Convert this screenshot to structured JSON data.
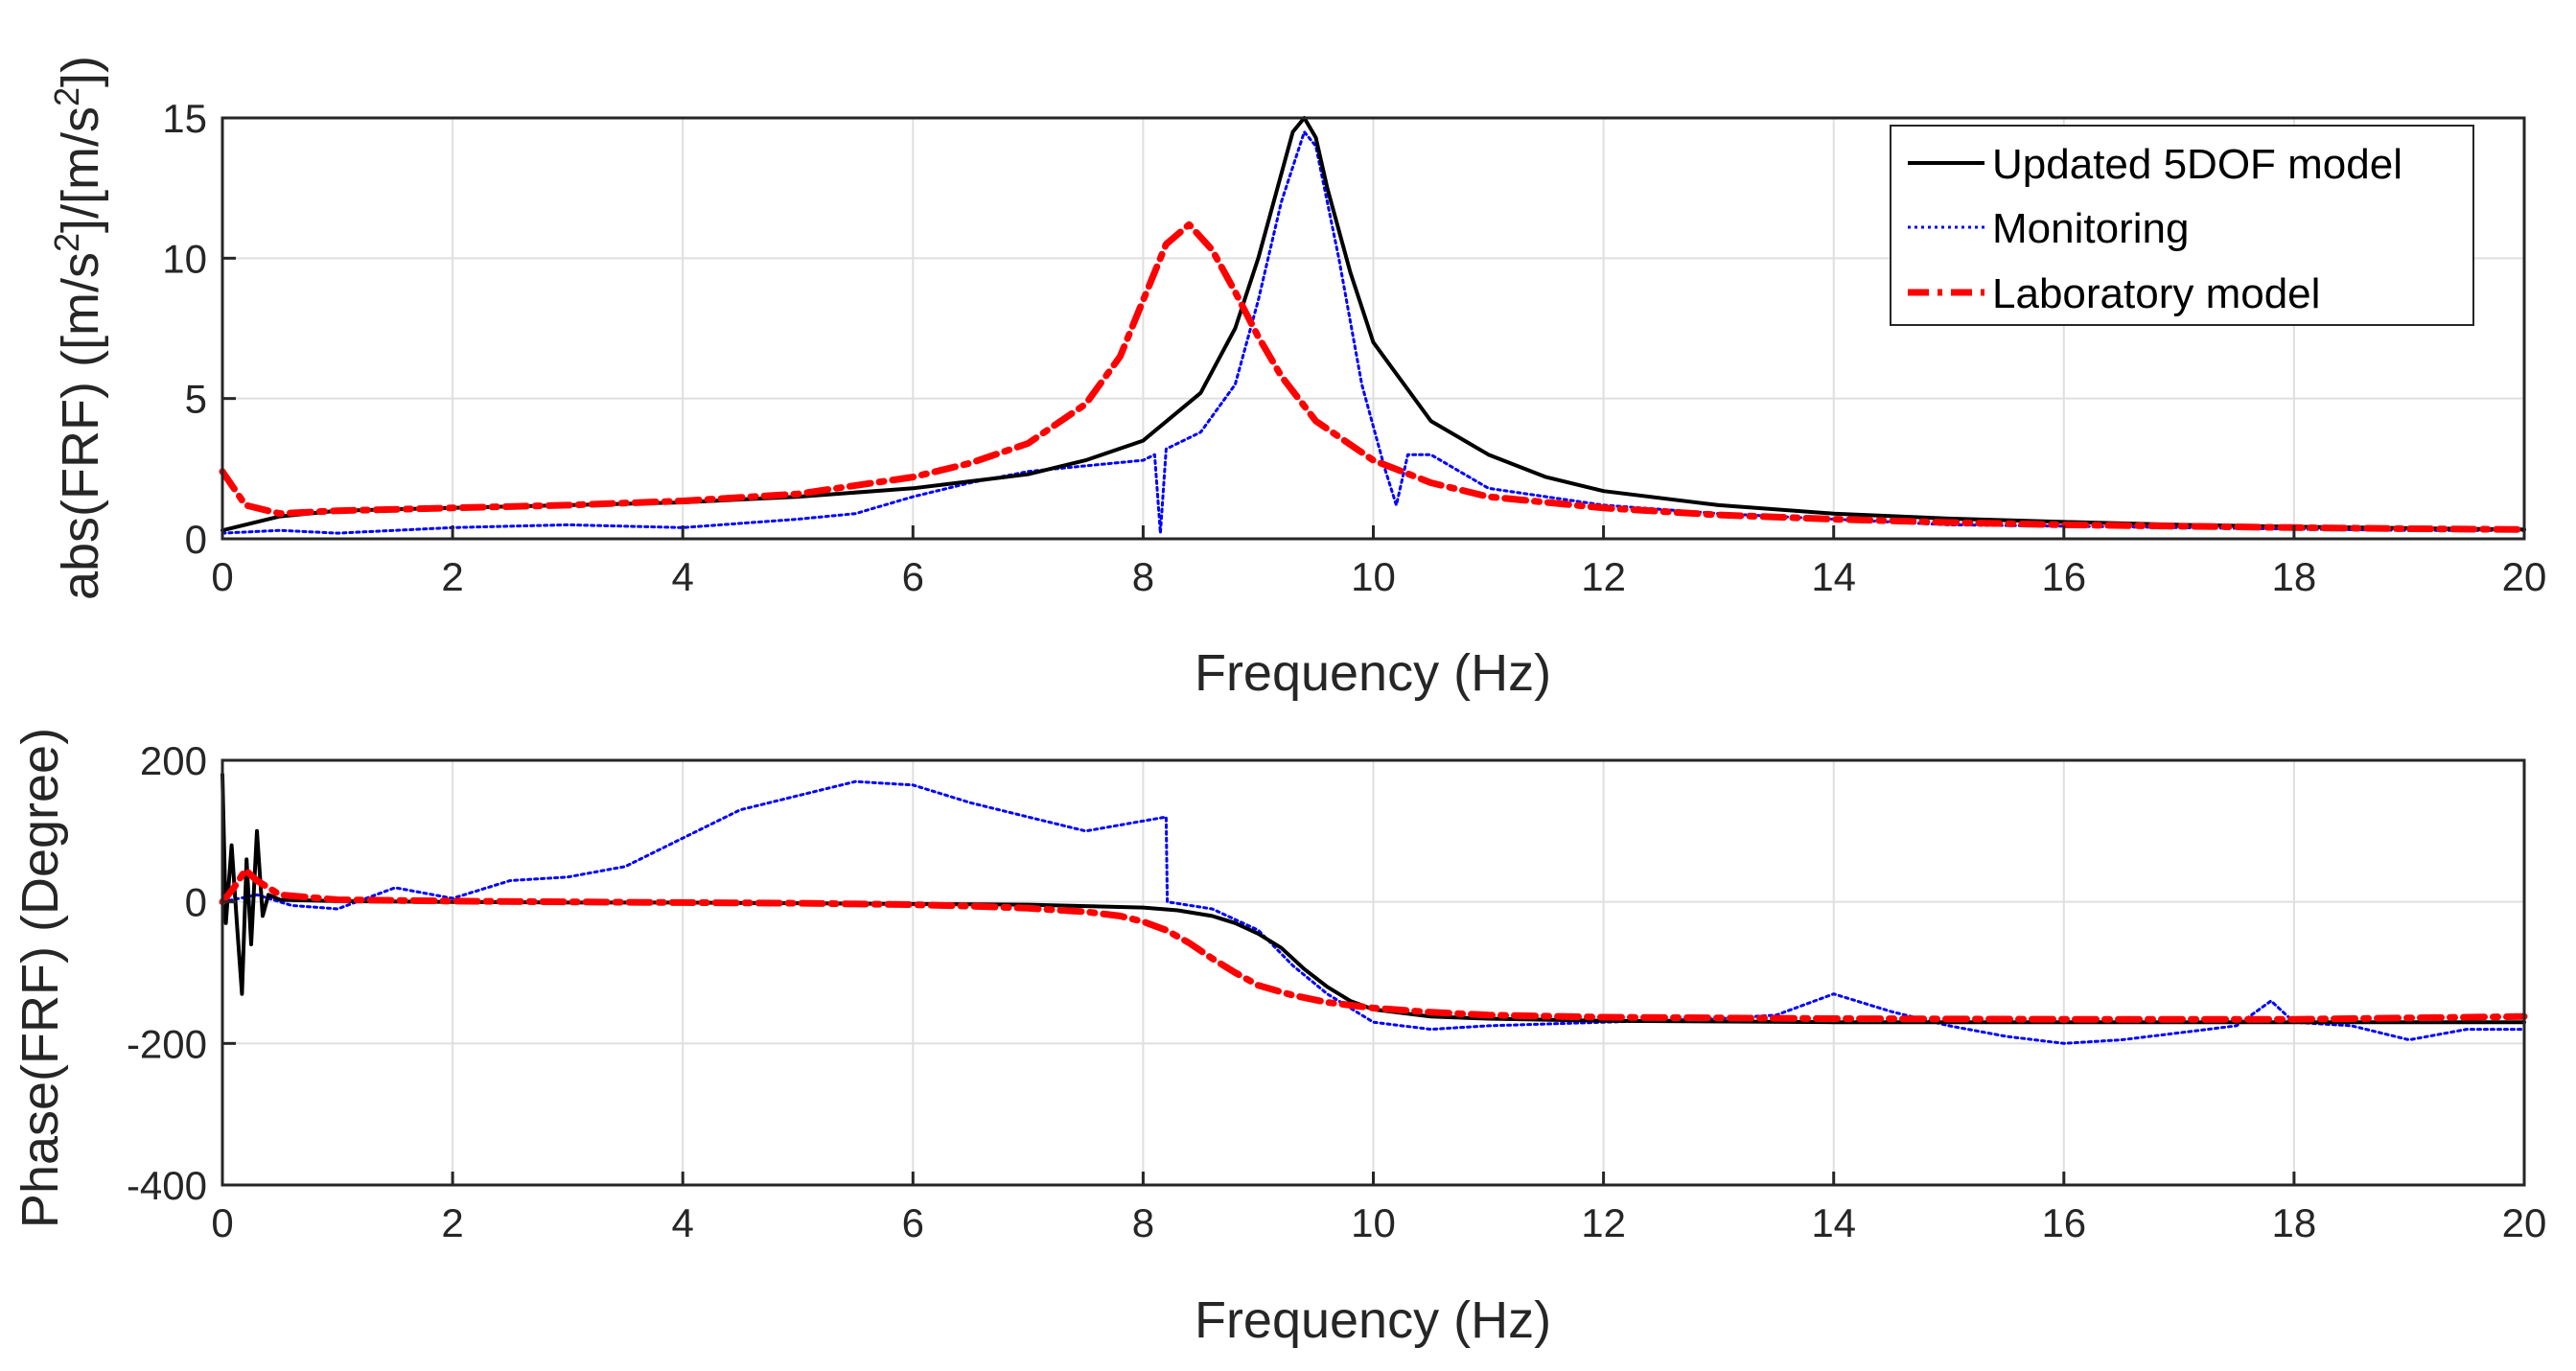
{
  "colors": {
    "model": "#000000",
    "monitoring": "#0000ff",
    "laboratory": "#ff0000",
    "axis": "#262626",
    "grid": "#dfdfdf"
  },
  "chart_data": [
    {
      "type": "line",
      "xlabel": "Frequency (Hz)",
      "ylabel_parts": [
        "abs(FRF) ([m/s",
        "2",
        "]/[m/s",
        "2",
        "])"
      ],
      "xlim": [
        0,
        20
      ],
      "ylim": [
        0,
        15
      ],
      "xticks": [
        0,
        2,
        4,
        6,
        8,
        10,
        12,
        14,
        16,
        18,
        20
      ],
      "yticks": [
        0,
        5,
        10,
        15
      ],
      "grid": true,
      "legend": {
        "placement": "top-right",
        "entries": [
          "Updated 5DOF model",
          "Monitoring",
          "Laboratory model"
        ]
      },
      "series": [
        {
          "name": "Updated 5DOF model",
          "style": "solid",
          "x": [
            0,
            0.5,
            1,
            2,
            3,
            4,
            5,
            6,
            7,
            7.5,
            8,
            8.5,
            8.8,
            9,
            9.2,
            9.3,
            9.4,
            9.5,
            9.6,
            9.8,
            10,
            10.5,
            11,
            11.5,
            12,
            13,
            14,
            15,
            16,
            17,
            18,
            19,
            20
          ],
          "y": [
            0.3,
            0.8,
            1.0,
            1.1,
            1.2,
            1.3,
            1.5,
            1.8,
            2.3,
            2.8,
            3.5,
            5.2,
            7.5,
            10,
            13,
            14.5,
            15,
            14.3,
            12.5,
            9.5,
            7,
            4.2,
            3,
            2.2,
            1.7,
            1.2,
            0.9,
            0.72,
            0.6,
            0.5,
            0.43,
            0.38,
            0.33
          ]
        },
        {
          "name": "Monitoring",
          "style": "dotted",
          "x": [
            0,
            0.5,
            1,
            2,
            3,
            4,
            5,
            5.5,
            6,
            6.5,
            7,
            7.5,
            8,
            8.1,
            8.15,
            8.2,
            8.5,
            8.8,
            9,
            9.2,
            9.4,
            9.5,
            9.7,
            9.9,
            10.1,
            10.2,
            10.3,
            10.5,
            11,
            12,
            13,
            14,
            15,
            16,
            17,
            18,
            19,
            20
          ],
          "y": [
            0.2,
            0.3,
            0.2,
            0.4,
            0.5,
            0.4,
            0.7,
            0.9,
            1.5,
            2.0,
            2.4,
            2.6,
            2.8,
            3.0,
            0.2,
            3.2,
            3.8,
            5.5,
            8.5,
            12,
            14.5,
            14,
            10,
            5.5,
            2.5,
            1.2,
            3.0,
            3.0,
            1.8,
            1.2,
            0.9,
            0.7,
            0.5,
            0.45,
            0.4,
            0.35,
            0.3,
            0.3
          ]
        },
        {
          "name": "Laboratory model",
          "style": "dashdot",
          "x": [
            0,
            0.2,
            0.5,
            1,
            2,
            3,
            4,
            5,
            6,
            6.5,
            7,
            7.5,
            7.8,
            8,
            8.2,
            8.4,
            8.6,
            8.8,
            9,
            9.2,
            9.5,
            10,
            10.5,
            11,
            12,
            13,
            14,
            15,
            16,
            17,
            18,
            19,
            20
          ],
          "y": [
            2.4,
            1.2,
            0.9,
            1.0,
            1.1,
            1.2,
            1.35,
            1.6,
            2.2,
            2.7,
            3.4,
            4.8,
            6.5,
            8.5,
            10.5,
            11.2,
            10.3,
            8.8,
            7.2,
            5.8,
            4.2,
            2.8,
            2.0,
            1.5,
            1.1,
            0.85,
            0.7,
            0.58,
            0.5,
            0.45,
            0.4,
            0.36,
            0.33
          ]
        }
      ]
    },
    {
      "type": "line",
      "xlabel": "Frequency (Hz)",
      "ylabel": "Phase(FRF) (Degree)",
      "xlim": [
        0,
        20
      ],
      "ylim": [
        -400,
        200
      ],
      "xticks": [
        0,
        2,
        4,
        6,
        8,
        10,
        12,
        14,
        16,
        18,
        20
      ],
      "yticks": [
        -400,
        -200,
        0,
        200
      ],
      "grid": true,
      "series": [
        {
          "name": "Updated 5DOF model",
          "style": "solid",
          "x": [
            0,
            0.03,
            0.08,
            0.13,
            0.17,
            0.21,
            0.25,
            0.3,
            0.35,
            0.4,
            0.5,
            1,
            2,
            3,
            4,
            5,
            6,
            7,
            7.5,
            8,
            8.3,
            8.6,
            8.8,
            9,
            9.2,
            9.4,
            9.6,
            9.8,
            10,
            10.5,
            11,
            12,
            14,
            16,
            18,
            20
          ],
          "y": [
            180,
            -30,
            80,
            -40,
            -130,
            60,
            -60,
            100,
            -20,
            10,
            3,
            1,
            0,
            -1,
            -1,
            -2,
            -3,
            -4,
            -6,
            -8,
            -12,
            -20,
            -30,
            -45,
            -65,
            -95,
            -120,
            -140,
            -152,
            -162,
            -165,
            -168,
            -170,
            -170,
            -170,
            -170
          ]
        },
        {
          "name": "Monitoring",
          "style": "dotted",
          "x": [
            0,
            0.3,
            0.6,
            1,
            1.5,
            2,
            2.5,
            3,
            3.5,
            4,
            4.5,
            5,
            5.5,
            6,
            6.5,
            7,
            7.5,
            8.2,
            8.21,
            8.6,
            9,
            9.3,
            9.6,
            10,
            10.5,
            11,
            12,
            13,
            13.5,
            14,
            14.5,
            15,
            15.5,
            16,
            16.5,
            17,
            17.5,
            17.8,
            18,
            18.5,
            19,
            19.5,
            20
          ],
          "y": [
            0,
            10,
            -5,
            -10,
            20,
            5,
            30,
            35,
            50,
            90,
            130,
            150,
            170,
            165,
            140,
            120,
            100,
            120,
            0,
            -10,
            -40,
            -90,
            -130,
            -170,
            -180,
            -175,
            -170,
            -165,
            -160,
            -130,
            -155,
            -175,
            -190,
            -200,
            -195,
            -185,
            -175,
            -140,
            -170,
            -175,
            -195,
            -180,
            -180
          ]
        },
        {
          "name": "Laboratory model",
          "style": "dashdot",
          "x": [
            0,
            0.1,
            0.2,
            0.3,
            0.5,
            1,
            2,
            3,
            4,
            5,
            6,
            6.5,
            7,
            7.5,
            7.8,
            8,
            8.2,
            8.4,
            8.6,
            8.8,
            9,
            9.3,
            9.6,
            10,
            10.5,
            11,
            12,
            14,
            16,
            18,
            20
          ],
          "y": [
            0,
            20,
            45,
            30,
            10,
            3,
            1,
            0,
            -1,
            -2,
            -4,
            -6,
            -9,
            -14,
            -20,
            -28,
            -40,
            -58,
            -80,
            -100,
            -118,
            -132,
            -142,
            -150,
            -156,
            -160,
            -163,
            -165,
            -166,
            -166,
            -162
          ]
        }
      ]
    }
  ]
}
